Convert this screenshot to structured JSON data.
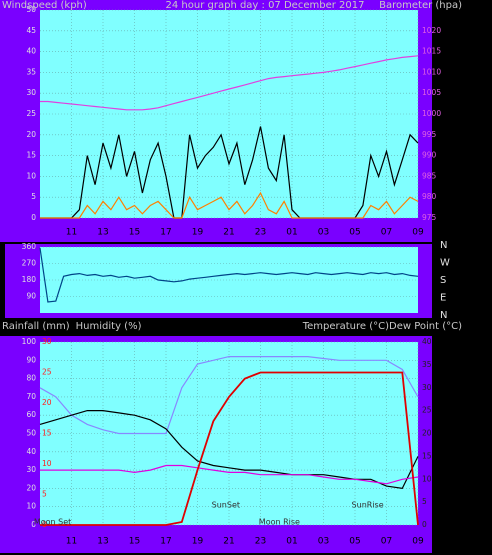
{
  "chart_data": [
    {
      "type": "line",
      "title": "24 hour graph day : 07 December 2017",
      "y_label": "Windspeed (kph)",
      "y2_label": "Barometer (hpa)",
      "grid": true,
      "xlim": [
        0,
        24
      ],
      "xticks": [
        {
          "value": 2,
          "label": "11"
        },
        {
          "value": 4,
          "label": "13"
        },
        {
          "value": 6,
          "label": "15"
        },
        {
          "value": 8,
          "label": "17"
        },
        {
          "value": 10,
          "label": "19"
        },
        {
          "value": 12,
          "label": "21"
        },
        {
          "value": 14,
          "label": "23"
        },
        {
          "value": 16,
          "label": "01"
        },
        {
          "value": 18,
          "label": "03"
        },
        {
          "value": 20,
          "label": "05"
        },
        {
          "value": 22,
          "label": "07"
        },
        {
          "value": 24,
          "label": "09"
        }
      ],
      "ylim": [
        0,
        50
      ],
      "yticks": [
        0,
        5,
        10,
        15,
        20,
        25,
        30,
        35,
        40,
        45,
        50
      ],
      "y2lim": [
        975,
        1025
      ],
      "y2ticks": [
        975,
        980,
        985,
        990,
        995,
        1000,
        1005,
        1010,
        1015,
        1020
      ],
      "x": [
        0,
        0.5,
        1,
        1.5,
        2,
        2.5,
        3,
        3.5,
        4,
        4.5,
        5,
        5.5,
        6,
        6.5,
        7,
        7.5,
        8,
        8.5,
        9,
        9.5,
        10,
        10.5,
        11,
        11.5,
        12,
        12.5,
        13,
        13.5,
        14,
        14.5,
        15,
        15.5,
        16,
        16.5,
        17,
        17.5,
        18,
        18.5,
        19,
        19.5,
        20,
        20.5,
        21,
        21.5,
        22,
        22.5,
        23,
        23.5,
        24
      ],
      "series": [
        {
          "color": "#000000",
          "values": [
            0,
            0,
            0,
            0,
            0,
            2,
            15,
            8,
            18,
            12,
            20,
            10,
            16,
            6,
            14,
            18,
            10,
            0,
            0,
            20,
            12,
            15,
            17,
            20,
            13,
            18,
            8,
            14,
            22,
            12,
            9,
            20,
            2,
            0,
            0,
            0,
            0,
            0,
            0,
            0,
            0,
            3,
            15,
            10,
            16,
            8,
            14,
            20,
            18
          ]
        },
        {
          "color": "#ff8000",
          "values": [
            0,
            0,
            0,
            0,
            0,
            0,
            3,
            1,
            4,
            2,
            5,
            2,
            3,
            1,
            3,
            4,
            2,
            0,
            0,
            5,
            2,
            3,
            4,
            5,
            2,
            4,
            1,
            3,
            6,
            2,
            1,
            4,
            0,
            0,
            0,
            0,
            0,
            0,
            0,
            0,
            0,
            0,
            3,
            2,
            4,
            1,
            3,
            5,
            4
          ]
        },
        {
          "color": "#e040e0",
          "axis": "y2",
          "values": [
            1003,
            1003,
            1002.8,
            1002.6,
            1002.4,
            1002.2,
            1002,
            1001.8,
            1001.6,
            1001.4,
            1001.2,
            1001,
            1001,
            1001,
            1001.2,
            1001.5,
            1002,
            1002.5,
            1003,
            1003.5,
            1004,
            1004.5,
            1005,
            1005.5,
            1006,
            1006.5,
            1007,
            1007.5,
            1008,
            1008.5,
            1008.8,
            1009,
            1009.2,
            1009.4,
            1009.6,
            1009.8,
            1010,
            1010.3,
            1010.6,
            1011,
            1011.4,
            1011.8,
            1012.2,
            1012.6,
            1013,
            1013.3,
            1013.6,
            1013.8,
            1014
          ]
        }
      ]
    },
    {
      "type": "line",
      "grid": true,
      "xlim": [
        0,
        24
      ],
      "ylim": [
        0,
        360
      ],
      "yticks": [
        90,
        180,
        270,
        360
      ],
      "y2lim": [
        0,
        360
      ],
      "y2ticks": [
        {
          "value": 360,
          "label": "N"
        },
        {
          "value": 270,
          "label": "W"
        },
        {
          "value": 180,
          "label": "S"
        },
        {
          "value": 90,
          "label": "E"
        },
        {
          "value": 0,
          "label": "N"
        }
      ],
      "x": [
        0,
        0.5,
        1,
        1.5,
        2,
        2.5,
        3,
        3.5,
        4,
        4.5,
        5,
        5.5,
        6,
        6.5,
        7,
        7.5,
        8,
        8.5,
        9,
        9.5,
        10,
        10.5,
        11,
        11.5,
        12,
        12.5,
        13,
        13.5,
        14,
        14.5,
        15,
        15.5,
        16,
        16.5,
        17,
        17.5,
        18,
        18.5,
        19,
        19.5,
        20,
        20.5,
        21,
        21.5,
        22,
        22.5,
        23,
        23.5,
        24
      ],
      "series": [
        {
          "color": "#004488",
          "values": [
            355,
            60,
            65,
            200,
            210,
            215,
            205,
            210,
            200,
            205,
            195,
            200,
            190,
            195,
            200,
            180,
            175,
            170,
            175,
            185,
            190,
            195,
            200,
            205,
            210,
            215,
            210,
            215,
            220,
            215,
            210,
            215,
            220,
            215,
            210,
            220,
            215,
            210,
            215,
            220,
            215,
            210,
            220,
            215,
            220,
            210,
            215,
            205,
            200
          ]
        }
      ]
    },
    {
      "type": "line",
      "y3_label": "Rainfall (mm)",
      "y_label": "Humidity (%)",
      "y2_label": "Temperature (°C)Dew Point (°C)",
      "grid": true,
      "xlim": [
        0,
        24
      ],
      "xticks": [
        {
          "value": 2,
          "label": "11"
        },
        {
          "value": 4,
          "label": "13"
        },
        {
          "value": 6,
          "label": "15"
        },
        {
          "value": 8,
          "label": "17"
        },
        {
          "value": 10,
          "label": "19"
        },
        {
          "value": 12,
          "label": "21"
        },
        {
          "value": 14,
          "label": "23"
        },
        {
          "value": 16,
          "label": "01"
        },
        {
          "value": 18,
          "label": "03"
        },
        {
          "value": 20,
          "label": "05"
        },
        {
          "value": 22,
          "label": "07"
        },
        {
          "value": 24,
          "label": "09"
        }
      ],
      "ylim": [
        0,
        100
      ],
      "yticks": [
        0,
        10,
        20,
        30,
        40,
        50,
        60,
        70,
        80,
        90,
        100
      ],
      "y2lim": [
        0,
        40
      ],
      "y2ticks": [
        0,
        5,
        10,
        15,
        20,
        25,
        30,
        35,
        40
      ],
      "y3lim": [
        0,
        30
      ],
      "y3ticks": [
        0,
        5,
        10,
        15,
        20,
        25,
        30
      ],
      "annotations": [
        {
          "text": "Moon Set",
          "x": 0.8
        },
        {
          "text": "SunSet",
          "x": 11.8
        },
        {
          "text": "Moon Rise",
          "x": 15.2
        },
        {
          "text": "SunRise",
          "x": 20.8
        }
      ],
      "x": [
        0,
        1,
        2,
        3,
        4,
        5,
        6,
        7,
        8,
        9,
        10,
        11,
        12,
        13,
        14,
        15,
        16,
        17,
        18,
        19,
        20,
        21,
        22,
        23,
        24
      ],
      "series": [
        {
          "color": "#8888ff",
          "values": [
            75,
            70,
            60,
            55,
            52,
            50,
            50,
            50,
            50,
            75,
            88,
            90,
            92,
            92,
            92,
            92,
            92,
            92,
            91,
            90,
            90,
            90,
            90,
            85,
            70
          ]
        },
        {
          "color": "#000000",
          "axis": "y2",
          "values": [
            22,
            23,
            24,
            25,
            25,
            24.5,
            24,
            23,
            21,
            17,
            14,
            13,
            12.5,
            12,
            12,
            11.5,
            11,
            11,
            11,
            10.5,
            10,
            10,
            8.5,
            8,
            15
          ]
        },
        {
          "color": "#e000e0",
          "axis": "y2",
          "values": [
            12,
            12,
            12,
            12,
            12,
            12,
            11.5,
            12,
            13,
            13,
            12.5,
            12,
            11.5,
            11.5,
            11,
            11,
            11,
            11,
            10.5,
            10,
            10,
            9.5,
            9,
            10,
            10.5
          ]
        },
        {
          "color": "#e00000",
          "axis": "y3",
          "values": [
            0,
            0,
            0,
            0,
            0,
            0,
            0,
            0,
            0,
            0.5,
            9,
            17,
            21,
            24,
            25,
            25,
            25,
            25,
            25,
            25,
            25,
            25,
            25,
            25,
            0
          ]
        }
      ]
    }
  ]
}
